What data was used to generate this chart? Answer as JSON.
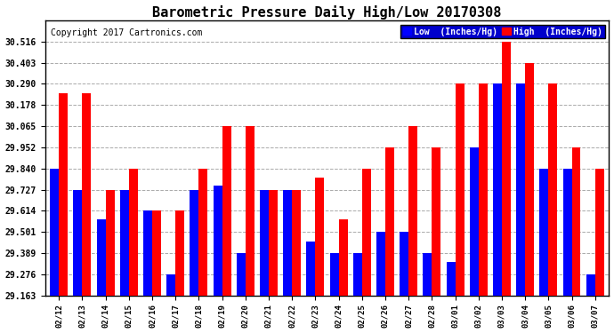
{
  "title": "Barometric Pressure Daily High/Low 20170308",
  "copyright": "Copyright 2017 Cartronics.com",
  "legend_low": "Low  (Inches/Hg)",
  "legend_high": "High  (Inches/Hg)",
  "dates": [
    "02/12",
    "02/13",
    "02/14",
    "02/15",
    "02/16",
    "02/17",
    "02/18",
    "02/19",
    "02/20",
    "02/21",
    "02/22",
    "02/23",
    "02/24",
    "02/25",
    "02/26",
    "02/27",
    "02/28",
    "03/01",
    "03/02",
    "03/03",
    "03/04",
    "03/05",
    "03/06",
    "03/07"
  ],
  "low": [
    29.84,
    29.727,
    29.57,
    29.727,
    29.614,
    29.276,
    29.727,
    29.75,
    29.389,
    29.727,
    29.727,
    29.45,
    29.389,
    29.389,
    29.501,
    29.501,
    29.389,
    29.34,
    29.952,
    30.29,
    30.29,
    29.84,
    29.84,
    29.276
  ],
  "high": [
    30.24,
    30.24,
    29.727,
    29.84,
    29.614,
    29.614,
    29.84,
    30.065,
    30.065,
    29.727,
    29.727,
    29.79,
    29.57,
    29.84,
    29.952,
    30.065,
    29.952,
    30.29,
    30.29,
    30.516,
    30.403,
    30.29,
    29.952,
    29.84
  ],
  "ylim_min": 29.163,
  "ylim_max": 30.629,
  "yticks": [
    29.163,
    29.276,
    29.389,
    29.501,
    29.614,
    29.727,
    29.84,
    29.952,
    30.065,
    30.178,
    30.29,
    30.403,
    30.516
  ],
  "ytick_labels": [
    "29.163",
    "29.276",
    "29.389",
    "29.501",
    "29.614",
    "29.727",
    "29.840",
    "29.952",
    "30.065",
    "30.178",
    "30.290",
    "30.403",
    "30.516"
  ],
  "low_color": "#0000ff",
  "high_color": "#ff0000",
  "bg_color": "#ffffff",
  "grid_color": "#aaaaaa",
  "title_fontsize": 11,
  "copyright_fontsize": 7,
  "bar_width": 0.38,
  "legend_bg": "#0000cc"
}
